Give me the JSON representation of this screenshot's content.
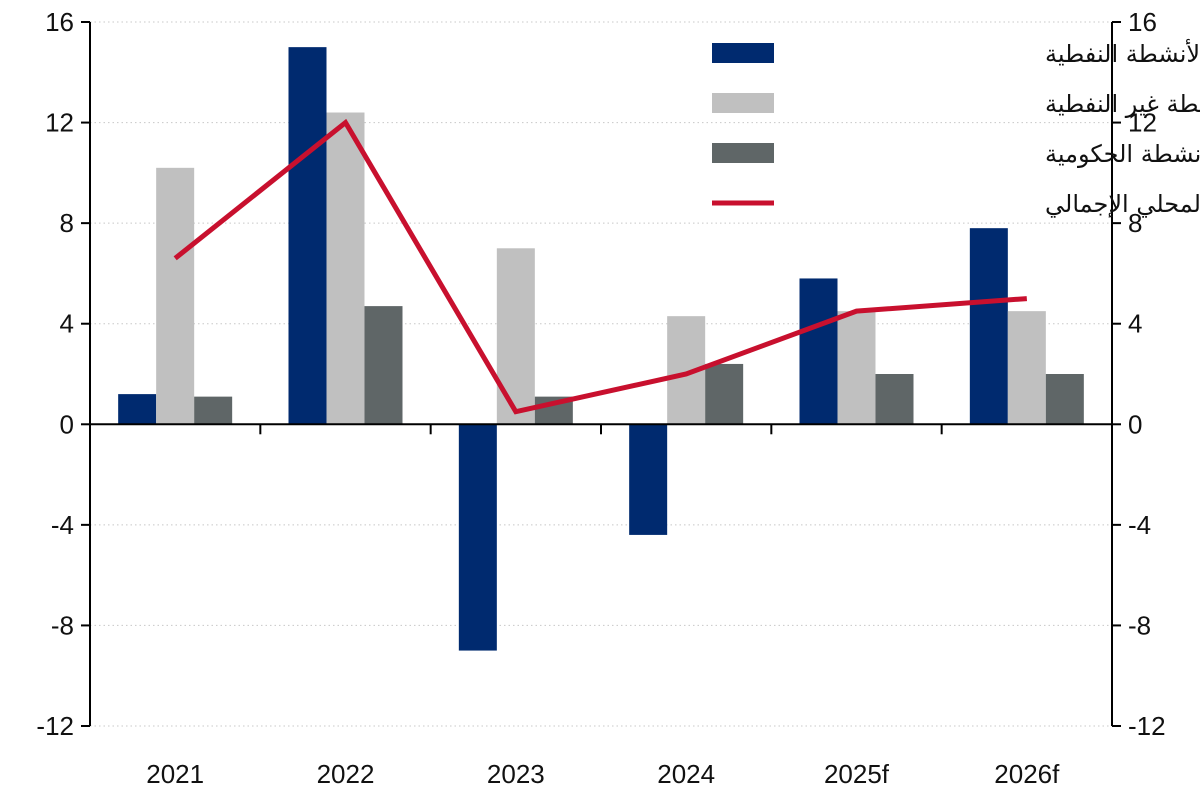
{
  "chart_data": {
    "type": "bar",
    "categories": [
      "2021",
      "2022",
      "2023",
      "2024",
      "2025f",
      "2026f"
    ],
    "series": [
      {
        "name": "الأنشطة النفطية",
        "kind": "bar",
        "color": "#002a6f",
        "values": [
          1.2,
          15.0,
          -9.0,
          -4.4,
          5.8,
          7.8
        ]
      },
      {
        "name": "الأنشطة غير النفطية",
        "kind": "bar",
        "color": "#c0c0c0",
        "values": [
          10.2,
          12.4,
          7.0,
          4.3,
          4.5,
          4.5
        ]
      },
      {
        "name": "الأنشطة الحكومية",
        "kind": "bar",
        "color": "#5f6667",
        "values": [
          1.1,
          4.7,
          1.1,
          2.4,
          2.0,
          2.0
        ]
      },
      {
        "name": "الناتج المحلي الإجمالي",
        "kind": "line",
        "color": "#c8102e",
        "values": [
          6.6,
          12.0,
          0.5,
          2.0,
          4.5,
          5.0
        ]
      }
    ],
    "ylim": [
      -12,
      16
    ],
    "yticks": [
      "16",
      "12",
      "8",
      "4",
      "0",
      "-4",
      "-8",
      "-12"
    ],
    "ytick_values": [
      16,
      12,
      8,
      4,
      0,
      -4,
      -8,
      -12
    ],
    "legend_position": "top-right",
    "grid": true,
    "title": "",
    "xlabel": "",
    "ylabel": ""
  }
}
